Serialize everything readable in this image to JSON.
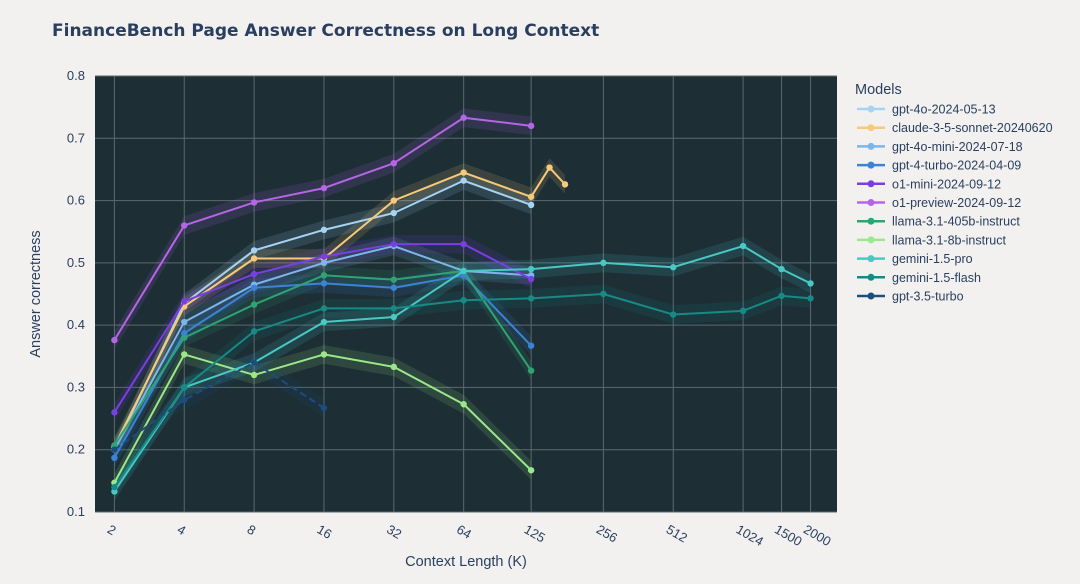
{
  "chart_data": {
    "type": "line",
    "title": "FinanceBench Page Answer Correctness on Long Context",
    "xlabel": "Context Length (K)",
    "ylabel": "Answer correctness",
    "x_scale": "log",
    "ylim": [
      0.1,
      0.8
    ],
    "x_ticks": [
      2,
      4,
      8,
      16,
      32,
      64,
      125,
      256,
      512,
      1024,
      1500,
      2000
    ],
    "y_ticks": [
      0.1,
      0.2,
      0.3,
      0.4,
      0.5,
      0.6,
      0.7,
      0.8
    ],
    "legend_title": "Models",
    "legend_position": "right",
    "background_color": "#1d2e35",
    "series": [
      {
        "name": "gpt-4o-2024-05-13",
        "color": "#a6d3f2",
        "x": [
          2,
          4,
          8,
          16,
          32,
          64,
          125
        ],
        "y": [
          0.2,
          0.435,
          0.52,
          0.553,
          0.58,
          0.632,
          0.593
        ]
      },
      {
        "name": "claude-3-5-sonnet-20240620",
        "color": "#f7c978",
        "x": [
          2,
          4,
          8,
          16,
          32,
          64,
          125,
          150,
          175
        ],
        "y": [
          0.205,
          0.43,
          0.507,
          0.507,
          0.6,
          0.645,
          0.606,
          0.653,
          0.626
        ]
      },
      {
        "name": "gpt-4o-mini-2024-07-18",
        "color": "#7cb7ec",
        "x": [
          2,
          4,
          8,
          16,
          32,
          64,
          125
        ],
        "y": [
          0.2,
          0.405,
          0.465,
          0.5,
          0.527,
          0.487,
          0.48
        ]
      },
      {
        "name": "gpt-4-turbo-2024-04-09",
        "color": "#3b83d6",
        "x": [
          2,
          4,
          8,
          16,
          32,
          64,
          125
        ],
        "y": [
          0.187,
          0.387,
          0.46,
          0.467,
          0.46,
          0.48,
          0.367
        ]
      },
      {
        "name": "o1-mini-2024-09-12",
        "color": "#7a3fe0",
        "x": [
          2,
          4,
          8,
          16,
          32,
          64,
          125
        ],
        "y": [
          0.26,
          0.438,
          0.482,
          0.51,
          0.53,
          0.53,
          0.474
        ]
      },
      {
        "name": "o1-preview-2024-09-12",
        "color": "#b466e6",
        "x": [
          2,
          4,
          8,
          16,
          32,
          64,
          125
        ],
        "y": [
          0.376,
          0.56,
          0.597,
          0.62,
          0.66,
          0.733,
          0.72
        ]
      },
      {
        "name": "llama-3.1-405b-instruct",
        "color": "#2fa374",
        "x": [
          2,
          4,
          8,
          16,
          32,
          64,
          125
        ],
        "y": [
          0.207,
          0.38,
          0.433,
          0.48,
          0.473,
          0.487,
          0.327
        ]
      },
      {
        "name": "llama-3.1-8b-instruct",
        "color": "#9ae88a",
        "x": [
          2,
          4,
          8,
          16,
          32,
          64,
          125
        ],
        "y": [
          0.147,
          0.353,
          0.32,
          0.353,
          0.333,
          0.273,
          0.167
        ]
      },
      {
        "name": "gemini-1.5-pro",
        "color": "#48c9c4",
        "x": [
          2,
          4,
          8,
          16,
          32,
          64,
          125,
          256,
          512,
          1024,
          1500,
          2000
        ],
        "y": [
          0.133,
          0.3,
          0.34,
          0.405,
          0.413,
          0.487,
          0.49,
          0.5,
          0.493,
          0.527,
          0.49,
          0.467
        ]
      },
      {
        "name": "gemini-1.5-flash",
        "color": "#178a86",
        "x": [
          2,
          4,
          8,
          16,
          32,
          64,
          125,
          256,
          512,
          1024,
          1500,
          2000
        ],
        "y": [
          0.14,
          0.3,
          0.39,
          0.427,
          0.427,
          0.44,
          0.443,
          0.45,
          0.417,
          0.423,
          0.447,
          0.443
        ]
      },
      {
        "name": "gpt-3.5-turbo",
        "color": "#1b4e7e",
        "x": [
          2,
          4,
          8,
          16
        ],
        "y": [
          0.2,
          0.28,
          0.34,
          0.267
        ]
      }
    ]
  }
}
